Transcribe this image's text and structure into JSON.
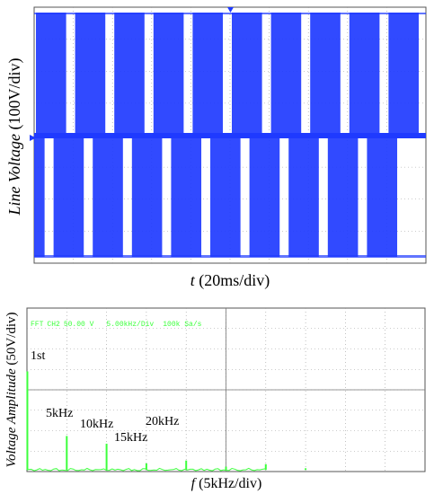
{
  "colors": {
    "scope_trace": "#1f3bff",
    "scope_bg": "#1a1a1a",
    "fft_trace": "#3cff3c",
    "grid": "#9a9a9a",
    "marker_blue": "#1f3bff"
  },
  "top_plot": {
    "ylabel_italic": "Line Voltage",
    "ylabel_rest": " (100V/div)",
    "xlabel_italic": "t",
    "xlabel_rest": " (20ms/div)",
    "chart_data": {
      "type": "line",
      "description_free": true,
      "x_divisions": 10,
      "y_divisions": 8,
      "ms_per_div": 20,
      "v_per_div": 100,
      "pulse_groups_upper": 10,
      "pulse_groups_lower": 10
    }
  },
  "bottom_plot": {
    "ylabel_italic": "Voltage Amplitude",
    "ylabel_rest": " (50V/div)",
    "xlabel_italic": "f",
    "xlabel_rest": " (5kHz/div)",
    "scope_header": {
      "mode": "FFT",
      "channel": "CH2",
      "scale": "50.00 V",
      "hscale": "5.00kHz/Div",
      "rate": "100k Sa/s"
    },
    "annotations": [
      "1st",
      "5kHz",
      "10kHz",
      "15kHz",
      "20kHz"
    ],
    "chart_data": {
      "type": "bar",
      "x_unit": "kHz",
      "kHz_per_div": 5,
      "V_per_div": 50,
      "xlim": [
        0,
        50
      ],
      "ylim": [
        0,
        400
      ],
      "peaks": [
        {
          "f": 0.05,
          "v": 245
        },
        {
          "f": 5,
          "v": 87
        },
        {
          "f": 10,
          "v": 68
        },
        {
          "f": 15,
          "v": 20
        },
        {
          "f": 20,
          "v": 27
        },
        {
          "f": 25,
          "v": 12
        },
        {
          "f": 30,
          "v": 18
        },
        {
          "f": 35,
          "v": 8
        }
      ]
    }
  }
}
